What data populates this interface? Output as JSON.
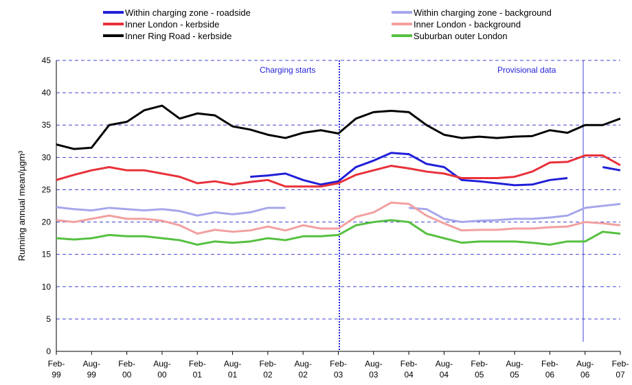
{
  "chart_data": {
    "type": "line",
    "y_label": "Running annual mean/µgm³",
    "annotations": [
      "Charging starts",
      "Provisional data"
    ],
    "categories": [
      "Feb-99",
      null,
      "Aug-99",
      null,
      "Feb-00",
      null,
      "Aug-00",
      null,
      "Feb-01",
      null,
      "Aug-01",
      null,
      "Feb-02",
      null,
      "Aug-02",
      null,
      "Feb-03",
      null,
      "Aug-03",
      null,
      "Feb-04",
      null,
      "Aug-04",
      null,
      "Feb-05",
      null,
      "Aug-05",
      null,
      "Feb-06",
      null,
      "Aug-06",
      null,
      "Feb-07"
    ],
    "ylim": [
      0,
      45
    ],
    "yticks": [
      0,
      5,
      10,
      15,
      20,
      25,
      30,
      35,
      40,
      45
    ],
    "grid": true,
    "series": [
      {
        "name": "Within charging zone - roadside",
        "color": "#1f1fd8",
        "values": [
          null,
          null,
          null,
          null,
          null,
          null,
          null,
          null,
          null,
          null,
          null,
          27,
          27.2,
          27.5,
          26.5,
          25.8,
          26.3,
          28.5,
          29.5,
          30.7,
          30.5,
          29,
          28.5,
          26.5,
          26.3,
          26,
          25.7,
          25.8,
          26.5,
          26.8,
          null,
          28.5,
          28
        ]
      },
      {
        "name": "Within charging zone - background",
        "color": "#a6a6ec",
        "values": [
          22.3,
          22,
          21.8,
          22.2,
          22,
          21.8,
          22,
          21.7,
          21,
          21.5,
          21.2,
          21.5,
          22.2,
          22.2,
          null,
          null,
          null,
          null,
          null,
          null,
          22.2,
          22,
          20.5,
          20,
          20.2,
          20.3,
          20.5,
          20.5,
          20.7,
          21,
          22.2,
          22.5,
          22.8
        ]
      },
      {
        "name": "Inner London - kerbside",
        "color": "#e8303a",
        "values": [
          26.5,
          27.3,
          28,
          28.5,
          28,
          28,
          27.5,
          27,
          26,
          26.3,
          25.8,
          26.2,
          26.5,
          25.5,
          25.5,
          25.5,
          26,
          27.3,
          28,
          28.7,
          28.3,
          27.8,
          27.5,
          26.8,
          26.8,
          26.8,
          27,
          27.8,
          29.2,
          29.3,
          30.3,
          30.3,
          28.8
        ]
      },
      {
        "name": "Inner London - background",
        "color": "#f2a0a0",
        "values": [
          20.3,
          20,
          20.5,
          21,
          20.5,
          20.5,
          20.2,
          19.5,
          18.2,
          18.8,
          18.5,
          18.7,
          19.3,
          18.7,
          19.5,
          19,
          19,
          20.8,
          21.5,
          23,
          22.8,
          21,
          19.8,
          18.7,
          18.8,
          18.8,
          19,
          19,
          19.2,
          19.3,
          20,
          19.8,
          19.5
        ]
      },
      {
        "name": "Inner Ring Road - kerbside",
        "color": "#000000",
        "values": [
          32,
          31.3,
          31.5,
          35,
          35.5,
          37.3,
          38,
          36,
          36.8,
          36.5,
          34.8,
          34.3,
          33.5,
          33,
          33.8,
          34.2,
          33.7,
          36,
          37,
          37.2,
          37,
          35,
          33.5,
          33,
          33.2,
          33,
          33.2,
          33.3,
          34.2,
          33.8,
          35,
          35,
          36
        ]
      },
      {
        "name": "Suburban outer London",
        "color": "#55c040",
        "values": [
          17.5,
          17.3,
          17.5,
          18,
          17.8,
          17.8,
          17.5,
          17.2,
          16.5,
          17,
          16.8,
          17,
          17.5,
          17.2,
          17.8,
          17.8,
          18,
          19.5,
          20,
          20.3,
          20,
          18.2,
          17.5,
          16.8,
          17,
          17,
          17,
          16.8,
          16.5,
          17,
          17,
          18.5,
          18.2
        ]
      }
    ]
  }
}
